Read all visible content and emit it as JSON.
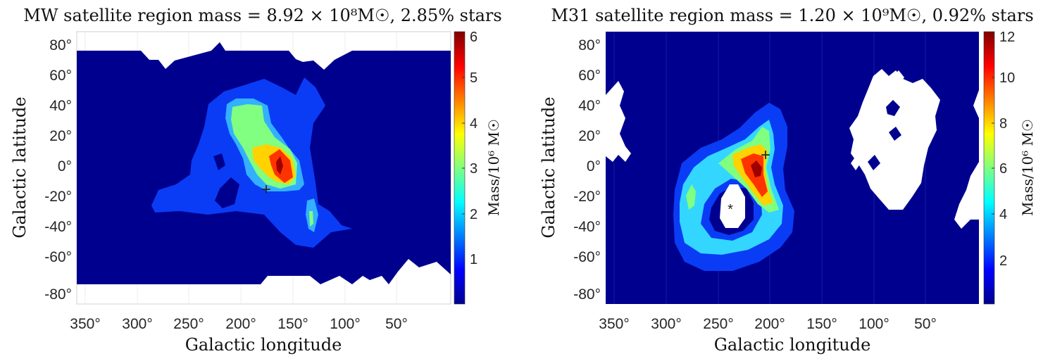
{
  "chart_data": [
    {
      "type": "heatmap",
      "title": "MW satellite region mass = 8.92 × 10⁸M☉, 2.85% stars",
      "xlabel": "Galactic longitude",
      "ylabel": "Galactic latitude",
      "colorbar_label": "Mass/10⁶ M☉",
      "x_ticks": [
        "350°",
        "300°",
        "250°",
        "200°",
        "150°",
        "100°",
        "50°"
      ],
      "x_tick_values": [
        350,
        300,
        250,
        200,
        150,
        100,
        50
      ],
      "y_ticks": [
        "80°",
        "60°",
        "40°",
        "20°",
        "0°",
        "-20°",
        "-40°",
        "-60°",
        "-80°"
      ],
      "y_tick_values": [
        80,
        60,
        40,
        20,
        0,
        -20,
        -40,
        -60,
        -80
      ],
      "xlim": [
        360,
        0
      ],
      "ylim": [
        -90,
        90
      ],
      "colorbar_ticks": [
        "1",
        "2",
        "3",
        "4",
        "5",
        "6"
      ],
      "colorbar_tick_values": [
        1,
        2,
        3,
        4,
        5,
        6
      ],
      "colorbar_range": [
        0,
        6
      ],
      "peak": {
        "l": 163,
        "b": 2,
        "value": 6
      },
      "markers": [
        {
          "symbol": "+",
          "l": 175,
          "b": -15,
          "color": "#c77dff"
        }
      ]
    },
    {
      "type": "heatmap",
      "title": "M31 satellite region mass = 1.20 × 10⁹M☉, 0.92% stars",
      "xlabel": "Galactic longitude",
      "ylabel": "Galactic latitude",
      "colorbar_label": "Mass/10⁶ M☉",
      "x_ticks": [
        "350°",
        "300°",
        "250°",
        "200°",
        "150°",
        "100°",
        "50°"
      ],
      "x_tick_values": [
        350,
        300,
        250,
        200,
        150,
        100,
        50
      ],
      "y_ticks": [
        "80°",
        "60°",
        "40°",
        "20°",
        "0°",
        "-20°",
        "-40°",
        "-60°",
        "-80°"
      ],
      "y_tick_values": [
        80,
        60,
        40,
        20,
        0,
        -20,
        -40,
        -60,
        -80
      ],
      "xlim": [
        360,
        0
      ],
      "ylim": [
        -90,
        90
      ],
      "colorbar_ticks": [
        "2",
        "4",
        "6",
        "8",
        "10",
        "12"
      ],
      "colorbar_tick_values": [
        2,
        4,
        6,
        8,
        10,
        12
      ],
      "colorbar_range": [
        0,
        12.5
      ],
      "peak": {
        "l": 217,
        "b": -2,
        "value": 12
      },
      "markers": [
        {
          "symbol": "*",
          "l": 241,
          "b": -27,
          "color": "#444444"
        },
        {
          "symbol": "+",
          "l": 207,
          "b": 8,
          "color": "#c77dff"
        }
      ]
    }
  ]
}
